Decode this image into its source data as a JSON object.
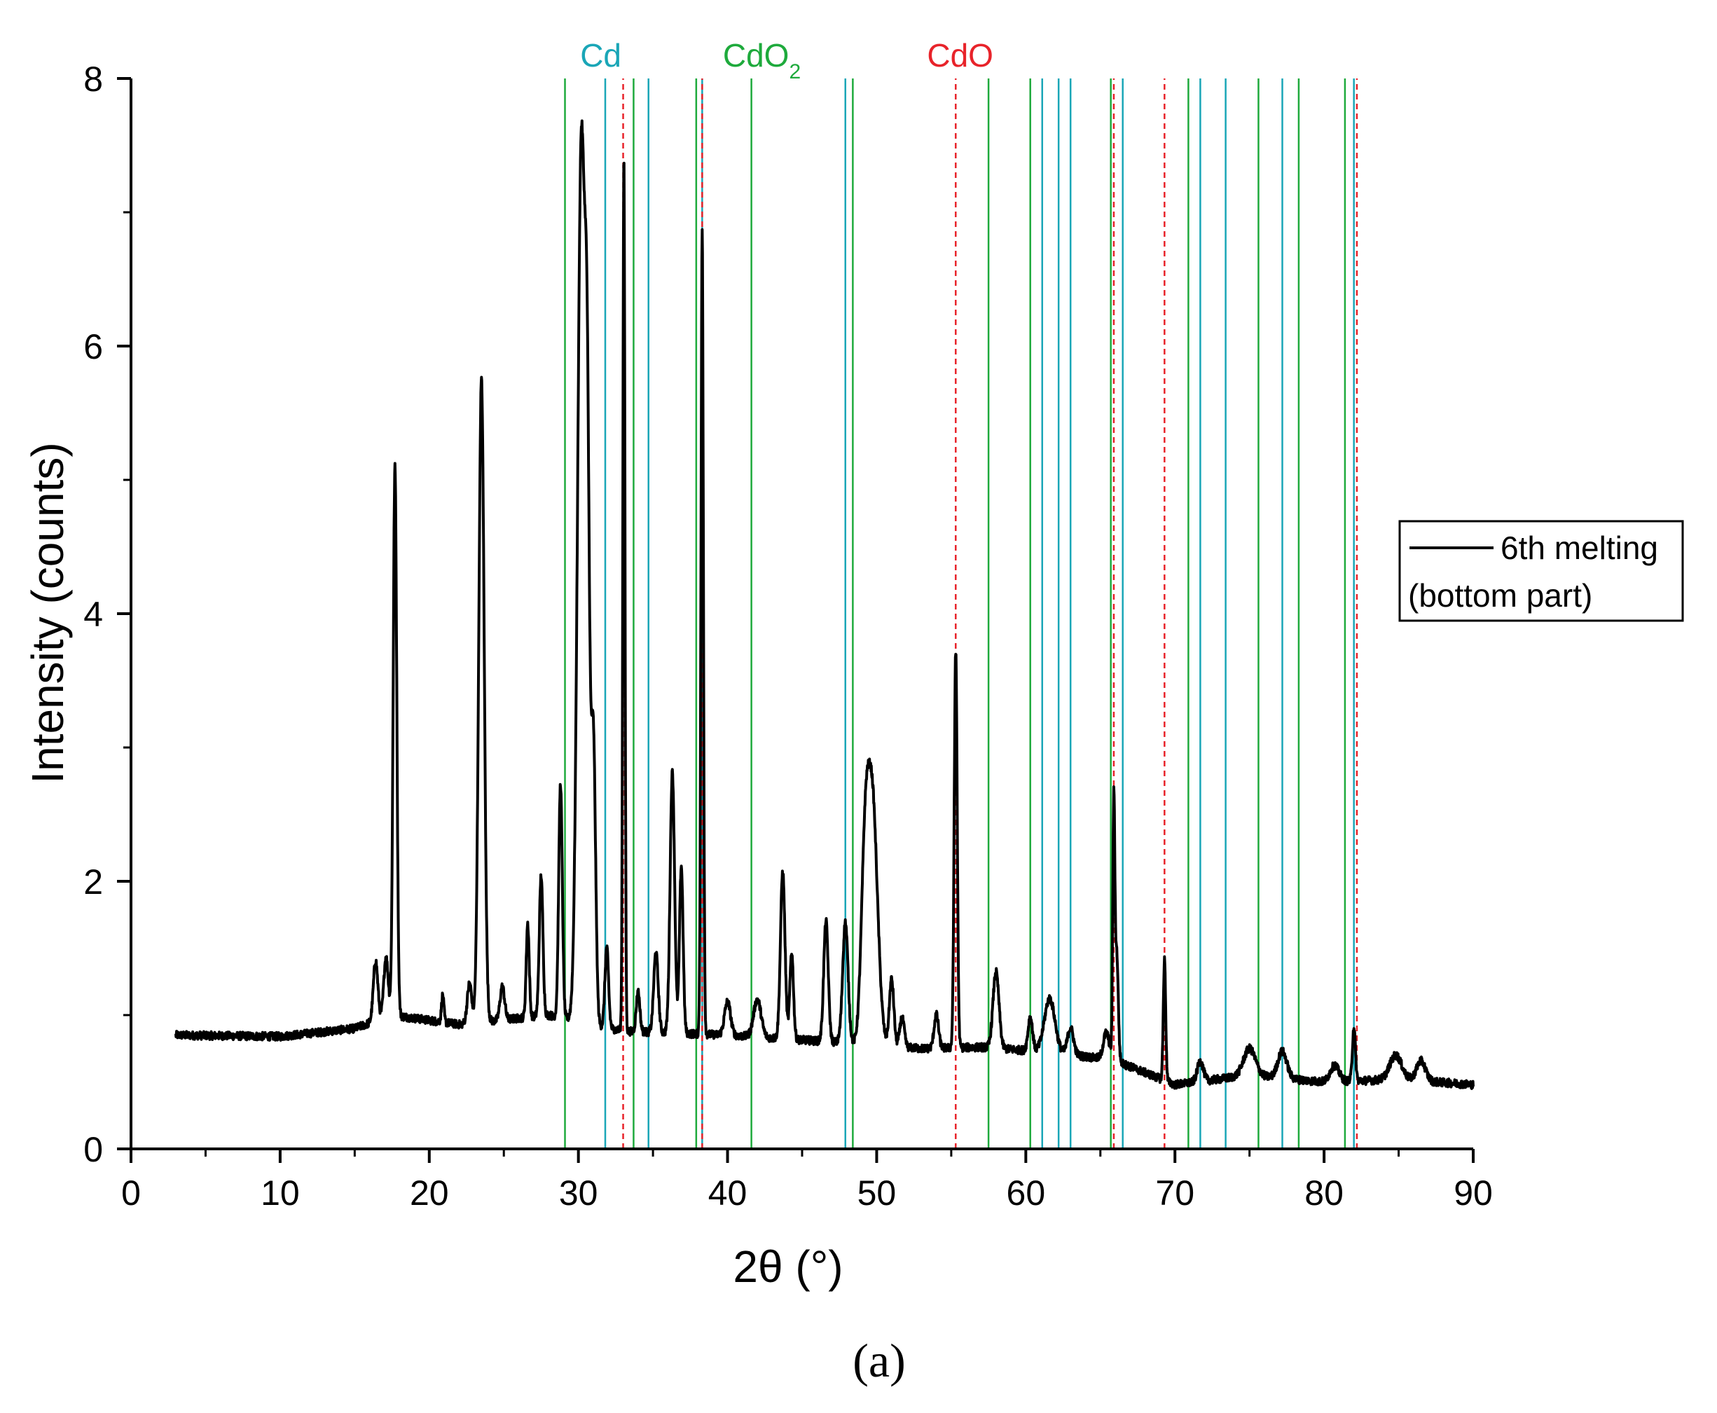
{
  "panel_label": "(a)",
  "chart_data": {
    "type": "line",
    "xlabel": "2θ (°)",
    "ylabel": "Intensity (counts)",
    "xlim": [
      0,
      90
    ],
    "ylim": [
      0,
      8
    ],
    "xticks": [
      0,
      10,
      20,
      30,
      40,
      50,
      60,
      70,
      80,
      90
    ],
    "yticks": [
      0,
      2,
      4,
      6,
      8
    ],
    "grid": false,
    "legend_placement": "right",
    "series": [
      {
        "name": "6th melting (bottom part)",
        "color": "#000000",
        "baseline": [
          [
            3,
            0.85
          ],
          [
            10,
            0.84
          ],
          [
            15,
            0.9
          ],
          [
            17.5,
            1.0
          ],
          [
            22,
            0.93
          ],
          [
            28,
            1.0
          ],
          [
            33,
            0.88
          ],
          [
            40,
            0.85
          ],
          [
            47,
            0.8
          ],
          [
            53,
            0.75
          ],
          [
            57,
            0.76
          ],
          [
            62,
            0.72
          ],
          [
            66,
            0.66
          ],
          [
            70,
            0.48
          ],
          [
            75,
            0.55
          ],
          [
            80,
            0.5
          ],
          [
            85,
            0.52
          ],
          [
            90,
            0.48
          ]
        ],
        "peaks": [
          [
            16.4,
            0.45,
            0.15
          ],
          [
            17.1,
            0.45,
            0.15
          ],
          [
            17.7,
            4.1,
            0.12
          ],
          [
            20.9,
            0.2,
            0.08
          ],
          [
            22.7,
            0.3,
            0.15
          ],
          [
            23.5,
            4.8,
            0.18
          ],
          [
            24.9,
            0.25,
            0.15
          ],
          [
            26.6,
            0.7,
            0.1
          ],
          [
            27.5,
            1.05,
            0.12
          ],
          [
            28.8,
            1.75,
            0.12
          ],
          [
            30.2,
            6.6,
            0.25
          ],
          [
            30.6,
            3.4,
            0.15
          ],
          [
            31.0,
            2.15,
            0.15
          ],
          [
            31.9,
            0.6,
            0.12
          ],
          [
            33.05,
            6.55,
            0.07
          ],
          [
            34.0,
            0.3,
            0.12
          ],
          [
            35.2,
            0.6,
            0.15
          ],
          [
            36.3,
            1.95,
            0.15
          ],
          [
            36.9,
            1.25,
            0.12
          ],
          [
            38.3,
            6.0,
            0.08
          ],
          [
            40.0,
            0.25,
            0.2
          ],
          [
            42.0,
            0.28,
            0.25
          ],
          [
            43.7,
            1.25,
            0.15
          ],
          [
            44.3,
            0.65,
            0.12
          ],
          [
            46.6,
            0.9,
            0.15
          ],
          [
            47.9,
            0.9,
            0.18
          ],
          [
            49.2,
            1.1,
            0.25
          ],
          [
            49.7,
            1.85,
            0.35
          ],
          [
            51.0,
            0.5,
            0.15
          ],
          [
            51.7,
            0.22,
            0.15
          ],
          [
            54.0,
            0.25,
            0.15
          ],
          [
            55.3,
            2.97,
            0.1
          ],
          [
            58.0,
            0.57,
            0.2
          ],
          [
            60.3,
            0.25,
            0.15
          ],
          [
            61.6,
            0.4,
            0.35
          ],
          [
            63.0,
            0.2,
            0.2
          ],
          [
            65.4,
            0.2,
            0.2
          ],
          [
            65.9,
            1.9,
            0.07
          ],
          [
            66.1,
            0.8,
            0.1
          ],
          [
            69.3,
            0.9,
            0.08
          ],
          [
            71.7,
            0.15,
            0.2
          ],
          [
            75.0,
            0.2,
            0.4
          ],
          [
            77.2,
            0.2,
            0.3
          ],
          [
            80.7,
            0.12,
            0.3
          ],
          [
            82.0,
            0.4,
            0.1
          ],
          [
            84.8,
            0.18,
            0.4
          ],
          [
            86.5,
            0.15,
            0.3
          ]
        ]
      }
    ],
    "reference_phases": [
      {
        "name": "Cd",
        "color": "#1aa6b7",
        "style": "solid",
        "positions": [
          31.8,
          34.7,
          38.3,
          47.9,
          61.1,
          62.2,
          63.0,
          66.5,
          71.7,
          73.4,
          77.2,
          82.0
        ]
      },
      {
        "name": "CdO2",
        "label_main": "CdO",
        "label_sub": "2",
        "color": "#1eaa3c",
        "style": "solid",
        "positions": [
          29.1,
          33.7,
          37.9,
          41.6,
          48.4,
          57.5,
          60.3,
          65.7,
          70.9,
          75.6,
          78.3,
          81.4
        ]
      },
      {
        "name": "CdO",
        "color": "#e8232a",
        "style": "dashed",
        "positions": [
          33.0,
          38.3,
          55.3,
          65.9,
          69.3,
          82.2
        ]
      }
    ]
  }
}
